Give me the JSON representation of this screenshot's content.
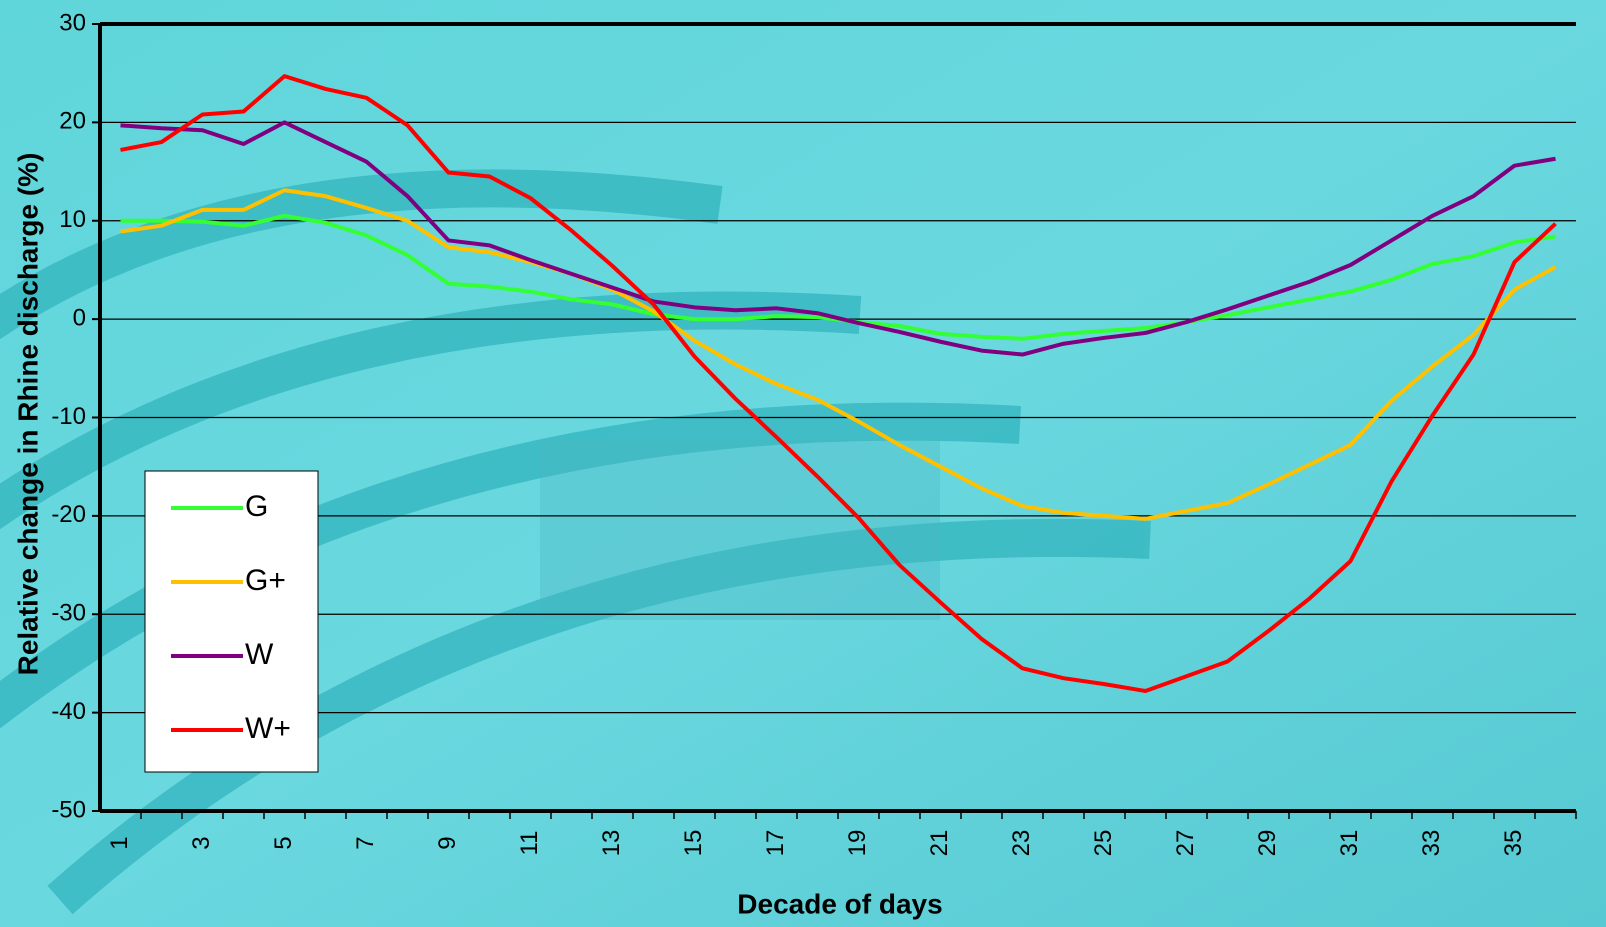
{
  "chart_data": {
    "type": "line",
    "x_label": "Decade of days",
    "y_label": "Relative change in Rhine discharge (%)",
    "categories": [
      "1",
      null,
      "3",
      null,
      "5",
      null,
      "7",
      null,
      "9",
      null,
      "11",
      null,
      "13",
      null,
      "15",
      null,
      "17",
      null,
      "19",
      null,
      "21",
      null,
      "23",
      null,
      "25",
      null,
      "27",
      null,
      "29",
      null,
      "31",
      null,
      "33",
      null,
      "35",
      null
    ],
    "series": [
      {
        "name": "G",
        "color": "#33ff33",
        "values": [
          10,
          10,
          9.9,
          9.5,
          10.5,
          9.8,
          8.5,
          6.5,
          3.6,
          3.3,
          2.8,
          2,
          1.5,
          0.5,
          0,
          0,
          0.3,
          0.2,
          -0.3,
          -0.7,
          -1.5,
          -1.8,
          -2,
          -1.5,
          -1.2,
          -0.9,
          -0.3,
          0.4,
          1.2,
          2,
          2.8,
          4,
          5.6,
          6.4,
          7.8,
          8.4
        ]
      },
      {
        "name": "G+",
        "color": "#ffc000",
        "values": [
          8.9,
          9.5,
          11.1,
          11.1,
          13.1,
          12.5,
          11.3,
          10,
          7.3,
          6.8,
          5.8,
          4.6,
          3,
          0.8,
          -2.2,
          -4.6,
          -6.6,
          -8.2,
          -10.4,
          -12.8,
          -15,
          -17.2,
          -19,
          -19.7,
          -20,
          -20.3,
          -19.5,
          -18.7,
          -16.8,
          -14.8,
          -12.8,
          -8.3,
          -4.8,
          -1.6,
          3,
          5.3
        ]
      },
      {
        "name": "W",
        "color": "#800080",
        "values": [
          19.7,
          19.4,
          19.2,
          17.8,
          20,
          18,
          16,
          12.5,
          8,
          7.5,
          6,
          4.6,
          3.2,
          1.8,
          1.2,
          0.9,
          1.1,
          0.6,
          -0.4,
          -1.3,
          -2.3,
          -3.2,
          -3.6,
          -2.5,
          -1.9,
          -1.4,
          -0.3,
          1,
          2.4,
          3.8,
          5.5,
          8,
          10.5,
          12.5,
          15.6,
          16.3
        ]
      },
      {
        "name": "W+",
        "color": "#ff0000",
        "values": [
          17.2,
          18,
          20.8,
          21.1,
          24.7,
          23.4,
          22.5,
          19.7,
          14.9,
          14.5,
          12.3,
          9,
          5.4,
          1.5,
          -3.8,
          -8.1,
          -12,
          -16,
          -20.2,
          -25,
          -28.8,
          -32.5,
          -35.5,
          -36.5,
          -37.1,
          -37.8,
          -36.3,
          -34.8,
          -31.7,
          -28.4,
          -24.6,
          -16.5,
          -9.8,
          -3.6,
          5.8,
          9.7
        ]
      }
    ],
    "ylim": [
      -50,
      30
    ],
    "yticks": [
      -50,
      -40,
      -30,
      -20,
      -10,
      0,
      10,
      20,
      30
    ],
    "grid": true,
    "legend": "lower left"
  }
}
